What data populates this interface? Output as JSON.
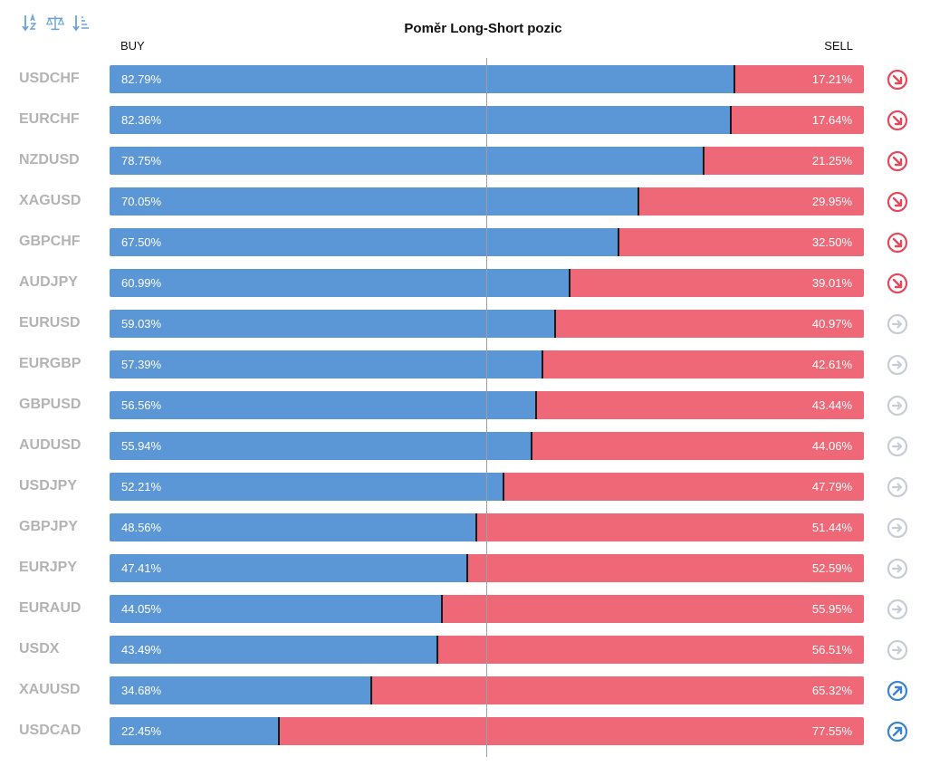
{
  "toolbar": {
    "icons": [
      "sort-alpha-icon",
      "balance-scale-icon",
      "sort-amount-icon"
    ],
    "color": "#6aa3d8"
  },
  "chart_data": {
    "type": "bar",
    "title": "Poměr Long-Short pozic",
    "buy_label": "BUY",
    "sell_label": "SELL",
    "series": [
      {
        "name": "BUY",
        "color": "#5b96d6"
      },
      {
        "name": "SELL",
        "color": "#ef6877"
      }
    ],
    "rows": [
      {
        "symbol": "USDCHF",
        "buy": 82.79,
        "sell": 17.21,
        "buy_text": "82.79%",
        "sell_text": "17.21%",
        "trend": "down"
      },
      {
        "symbol": "EURCHF",
        "buy": 82.36,
        "sell": 17.64,
        "buy_text": "82.36%",
        "sell_text": "17.64%",
        "trend": "down"
      },
      {
        "symbol": "NZDUSD",
        "buy": 78.75,
        "sell": 21.25,
        "buy_text": "78.75%",
        "sell_text": "21.25%",
        "trend": "down"
      },
      {
        "symbol": "XAGUSD",
        "buy": 70.05,
        "sell": 29.95,
        "buy_text": "70.05%",
        "sell_text": "29.95%",
        "trend": "down"
      },
      {
        "symbol": "GBPCHF",
        "buy": 67.5,
        "sell": 32.5,
        "buy_text": "67.50%",
        "sell_text": "32.50%",
        "trend": "down"
      },
      {
        "symbol": "AUDJPY",
        "buy": 60.99,
        "sell": 39.01,
        "buy_text": "60.99%",
        "sell_text": "39.01%",
        "trend": "down"
      },
      {
        "symbol": "EURUSD",
        "buy": 59.03,
        "sell": 40.97,
        "buy_text": "59.03%",
        "sell_text": "40.97%",
        "trend": "neutral"
      },
      {
        "symbol": "EURGBP",
        "buy": 57.39,
        "sell": 42.61,
        "buy_text": "57.39%",
        "sell_text": "42.61%",
        "trend": "neutral"
      },
      {
        "symbol": "GBPUSD",
        "buy": 56.56,
        "sell": 43.44,
        "buy_text": "56.56%",
        "sell_text": "43.44%",
        "trend": "neutral"
      },
      {
        "symbol": "AUDUSD",
        "buy": 55.94,
        "sell": 44.06,
        "buy_text": "55.94%",
        "sell_text": "44.06%",
        "trend": "neutral"
      },
      {
        "symbol": "USDJPY",
        "buy": 52.21,
        "sell": 47.79,
        "buy_text": "52.21%",
        "sell_text": "47.79%",
        "trend": "neutral"
      },
      {
        "symbol": "GBPJPY",
        "buy": 48.56,
        "sell": 51.44,
        "buy_text": "48.56%",
        "sell_text": "51.44%",
        "trend": "neutral"
      },
      {
        "symbol": "EURJPY",
        "buy": 47.41,
        "sell": 52.59,
        "buy_text": "47.41%",
        "sell_text": "52.59%",
        "trend": "neutral"
      },
      {
        "symbol": "EURAUD",
        "buy": 44.05,
        "sell": 55.95,
        "buy_text": "44.05%",
        "sell_text": "55.95%",
        "trend": "neutral"
      },
      {
        "symbol": "USDX",
        "buy": 43.49,
        "sell": 56.51,
        "buy_text": "43.49%",
        "sell_text": "56.51%",
        "trend": "neutral"
      },
      {
        "symbol": "XAUUSD",
        "buy": 34.68,
        "sell": 65.32,
        "buy_text": "34.68%",
        "sell_text": "65.32%",
        "trend": "up"
      },
      {
        "symbol": "USDCAD",
        "buy": 22.45,
        "sell": 77.55,
        "buy_text": "22.45%",
        "sell_text": "77.55%",
        "trend": "up"
      }
    ],
    "trend_colors": {
      "down": "#e5485a",
      "neutral": "#c8ccd6",
      "up": "#3b82d1"
    },
    "xlim": [
      0,
      100
    ],
    "midline": 50
  }
}
